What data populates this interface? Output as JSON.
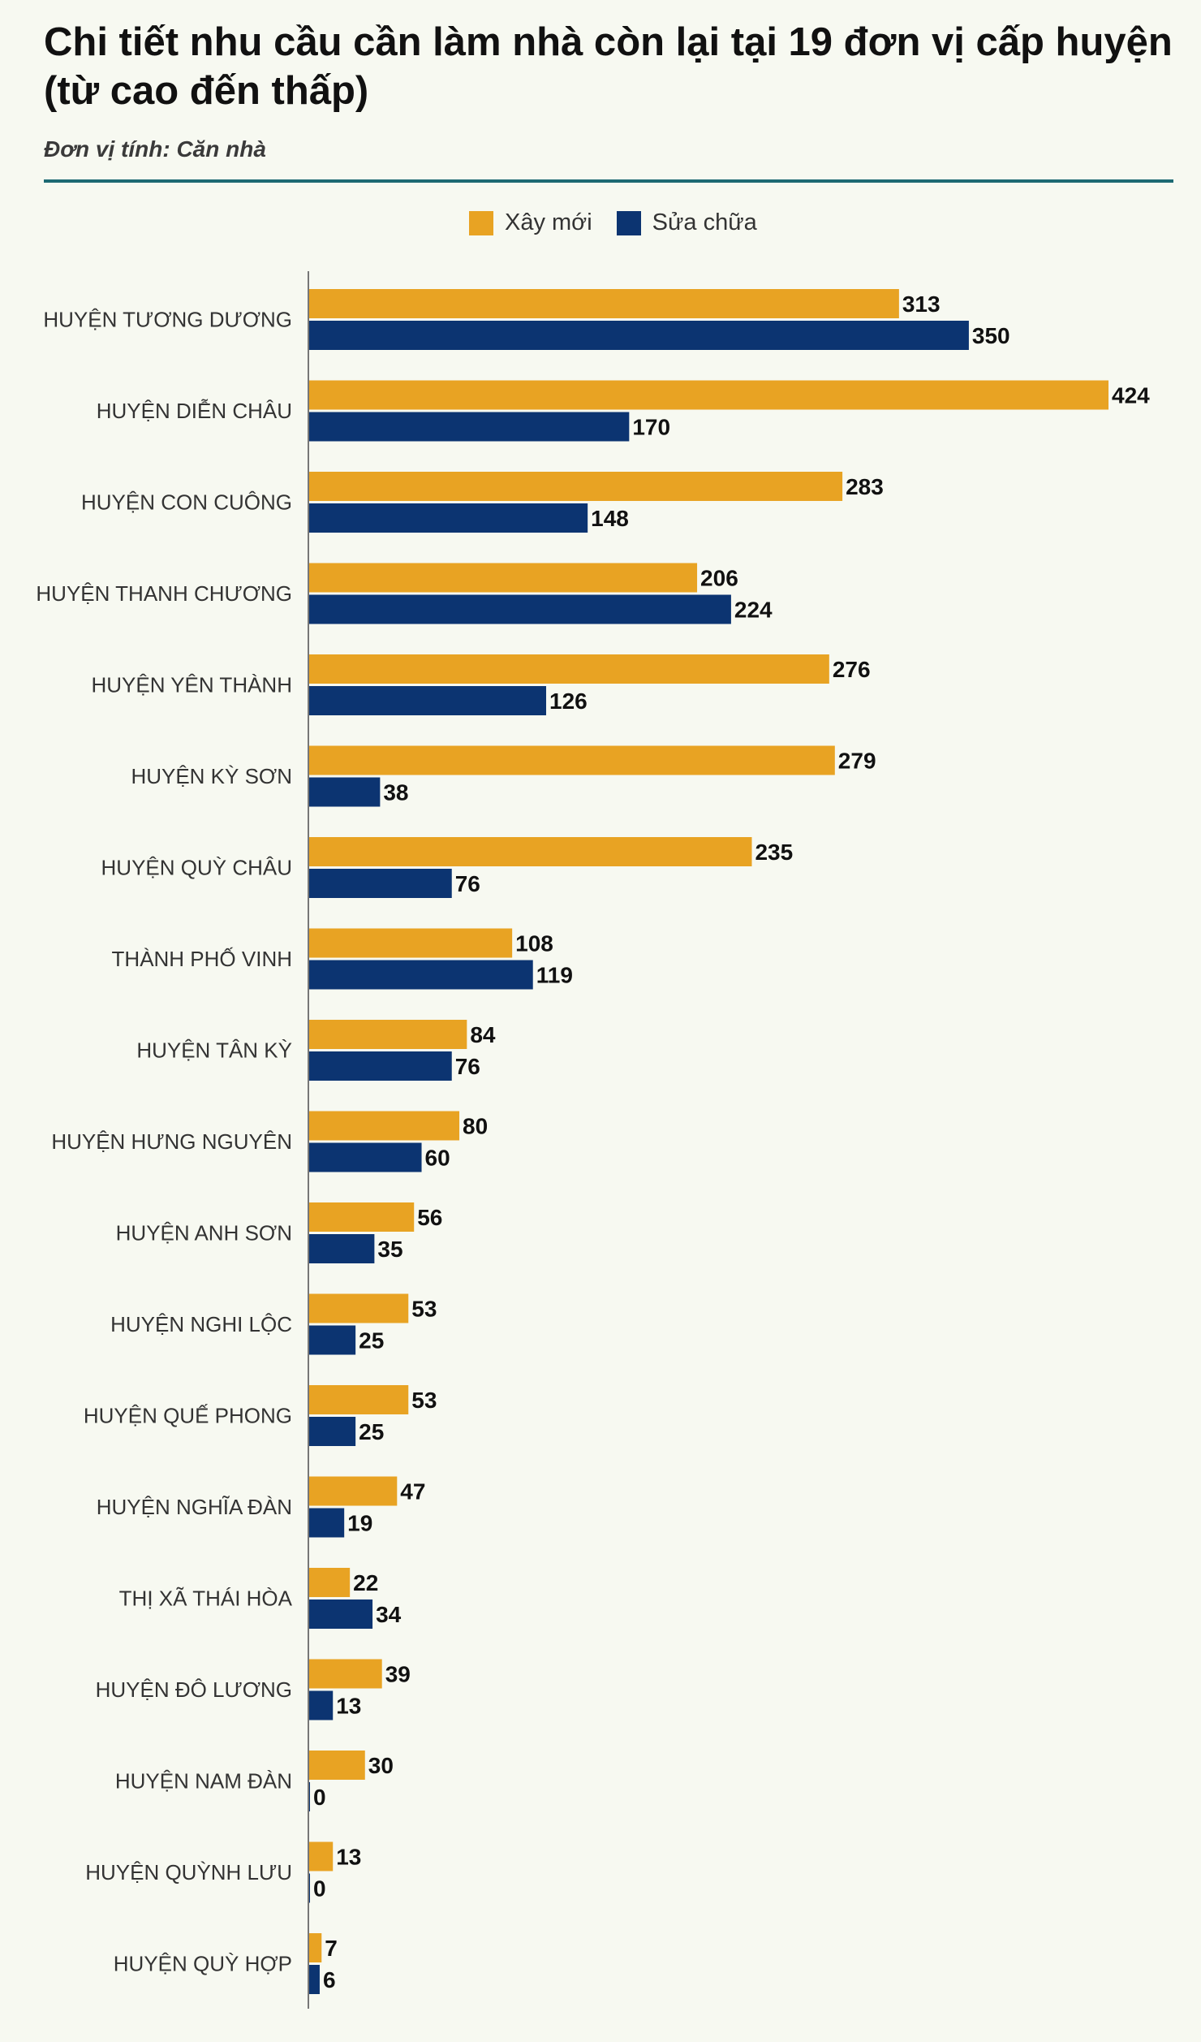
{
  "header": {
    "title": "Chi tiết nhu cầu cần làm nhà còn lại tại 19 đơn vị cấp huyện (từ cao đến thấp)",
    "unit": "Đơn vị tính: Căn nhà"
  },
  "chart_data": {
    "type": "bar",
    "orientation": "horizontal",
    "title": "Chi tiết nhu cầu cần làm nhà còn lại tại 19 đơn vị cấp huyện (từ cao đến thấp)",
    "subtitle": "Đơn vị tính: Căn nhà",
    "xlim": [
      0,
      424
    ],
    "grid": false,
    "legend_position": "top-center",
    "categories": [
      "HUYỆN TƯƠNG DƯƠNG",
      "HUYỆN DIỄN CHÂU",
      "HUYỆN CON CUÔNG",
      "HUYỆN THANH CHƯƠNG",
      "HUYỆN YÊN THÀNH",
      "HUYỆN KỲ SƠN",
      "HUYỆN QUỲ CHÂU",
      "THÀNH PHỐ VINH",
      "HUYỆN TÂN KỲ",
      "HUYỆN HƯNG NGUYÊN",
      "HUYỆN ANH SƠN",
      "HUYỆN NGHI LỘC",
      "HUYỆN QUẾ PHONG",
      "HUYỆN NGHĨA ĐÀN",
      "THỊ XÃ THÁI HÒA",
      "HUYỆN ĐÔ LƯƠNG",
      "HUYỆN NAM ĐÀN",
      "HUYỆN QUỲNH LƯU",
      "HUYỆN QUỲ HỢP"
    ],
    "series": [
      {
        "name": "Xây mới",
        "color": "#e8a323",
        "values": [
          313,
          424,
          283,
          206,
          276,
          279,
          235,
          108,
          84,
          80,
          56,
          53,
          53,
          47,
          22,
          39,
          30,
          13,
          7
        ]
      },
      {
        "name": "Sửa chữa",
        "color": "#0c3471",
        "values": [
          350,
          170,
          148,
          224,
          126,
          38,
          76,
          119,
          76,
          60,
          35,
          25,
          25,
          19,
          34,
          13,
          0,
          0,
          6
        ]
      }
    ]
  }
}
